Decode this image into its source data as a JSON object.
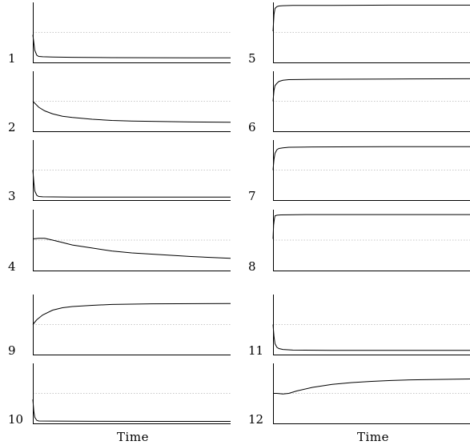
{
  "chart_data": {
    "type": "line",
    "xlabel": "Time",
    "ylim": [
      0,
      1
    ],
    "grid": "dotted-midline",
    "panels": [
      {
        "label": "1",
        "values": [
          [
            0,
            0.46
          ],
          [
            1,
            0.2
          ],
          [
            2,
            0.12
          ],
          [
            3,
            0.1
          ],
          [
            5,
            0.095
          ],
          [
            10,
            0.09
          ],
          [
            20,
            0.085
          ],
          [
            40,
            0.08
          ],
          [
            60,
            0.078
          ],
          [
            80,
            0.077
          ],
          [
            100,
            0.076
          ]
        ]
      },
      {
        "label": "2",
        "values": [
          [
            0,
            0.5
          ],
          [
            3,
            0.4
          ],
          [
            6,
            0.34
          ],
          [
            10,
            0.29
          ],
          [
            15,
            0.25
          ],
          [
            20,
            0.23
          ],
          [
            30,
            0.2
          ],
          [
            40,
            0.18
          ],
          [
            50,
            0.17
          ],
          [
            60,
            0.165
          ],
          [
            70,
            0.16
          ],
          [
            80,
            0.155
          ],
          [
            100,
            0.15
          ]
        ]
      },
      {
        "label": "3",
        "values": [
          [
            0,
            0.5
          ],
          [
            0.5,
            0.3
          ],
          [
            1,
            0.15
          ],
          [
            2,
            0.08
          ],
          [
            3,
            0.06
          ],
          [
            5,
            0.055
          ],
          [
            20,
            0.05
          ],
          [
            60,
            0.05
          ],
          [
            100,
            0.05
          ]
        ]
      },
      {
        "label": "4",
        "values": [
          [
            0,
            0.52
          ],
          [
            3,
            0.53
          ],
          [
            6,
            0.53
          ],
          [
            10,
            0.5
          ],
          [
            15,
            0.46
          ],
          [
            20,
            0.42
          ],
          [
            30,
            0.37
          ],
          [
            40,
            0.32
          ],
          [
            50,
            0.29
          ],
          [
            60,
            0.27
          ],
          [
            70,
            0.25
          ],
          [
            80,
            0.23
          ],
          [
            100,
            0.2
          ]
        ]
      },
      {
        "label": "5",
        "values": [
          [
            0,
            0.52
          ],
          [
            0.5,
            0.8
          ],
          [
            1,
            0.9
          ],
          [
            2,
            0.93
          ],
          [
            3,
            0.94
          ],
          [
            5,
            0.945
          ],
          [
            10,
            0.95
          ],
          [
            30,
            0.95
          ],
          [
            60,
            0.955
          ],
          [
            100,
            0.955
          ]
        ]
      },
      {
        "label": "6",
        "values": [
          [
            0,
            0.5
          ],
          [
            0.5,
            0.68
          ],
          [
            1,
            0.76
          ],
          [
            2,
            0.8
          ],
          [
            3,
            0.83
          ],
          [
            5,
            0.85
          ],
          [
            8,
            0.86
          ],
          [
            20,
            0.865
          ],
          [
            60,
            0.87
          ],
          [
            100,
            0.875
          ]
        ]
      },
      {
        "label": "7",
        "values": [
          [
            0,
            0.5
          ],
          [
            0.5,
            0.68
          ],
          [
            1,
            0.78
          ],
          [
            2,
            0.84
          ],
          [
            3,
            0.86
          ],
          [
            5,
            0.87
          ],
          [
            8,
            0.88
          ],
          [
            20,
            0.885
          ],
          [
            60,
            0.89
          ],
          [
            100,
            0.89
          ]
        ]
      },
      {
        "label": "8",
        "values": [
          [
            0,
            0.52
          ],
          [
            0.3,
            0.75
          ],
          [
            0.7,
            0.85
          ],
          [
            1,
            0.9
          ],
          [
            2,
            0.91
          ],
          [
            4,
            0.915
          ],
          [
            20,
            0.92
          ],
          [
            60,
            0.92
          ],
          [
            100,
            0.92
          ]
        ]
      },
      {
        "label": "9",
        "values": [
          [
            0,
            0.5
          ],
          [
            2,
            0.58
          ],
          [
            5,
            0.66
          ],
          [
            10,
            0.74
          ],
          [
            15,
            0.78
          ],
          [
            20,
            0.8
          ],
          [
            30,
            0.82
          ],
          [
            40,
            0.835
          ],
          [
            50,
            0.84
          ],
          [
            60,
            0.845
          ],
          [
            100,
            0.85
          ]
        ]
      },
      {
        "label": "10",
        "values": [
          [
            0,
            0.4
          ],
          [
            0.5,
            0.2
          ],
          [
            1,
            0.1
          ],
          [
            2,
            0.05
          ],
          [
            3,
            0.04
          ],
          [
            10,
            0.038
          ],
          [
            30,
            0.035
          ],
          [
            60,
            0.033
          ],
          [
            100,
            0.033
          ]
        ]
      },
      {
        "label": "11",
        "values": [
          [
            0,
            0.5
          ],
          [
            0.5,
            0.3
          ],
          [
            1,
            0.18
          ],
          [
            2,
            0.12
          ],
          [
            3,
            0.1
          ],
          [
            5,
            0.085
          ],
          [
            10,
            0.075
          ],
          [
            30,
            0.07
          ],
          [
            60,
            0.07
          ],
          [
            100,
            0.07
          ]
        ]
      },
      {
        "label": "12",
        "values": [
          [
            0,
            0.5
          ],
          [
            2,
            0.5
          ],
          [
            5,
            0.49
          ],
          [
            8,
            0.5
          ],
          [
            12,
            0.54
          ],
          [
            20,
            0.6
          ],
          [
            30,
            0.65
          ],
          [
            40,
            0.68
          ],
          [
            50,
            0.7
          ],
          [
            60,
            0.715
          ],
          [
            70,
            0.725
          ],
          [
            80,
            0.73
          ],
          [
            100,
            0.74
          ]
        ]
      }
    ]
  }
}
